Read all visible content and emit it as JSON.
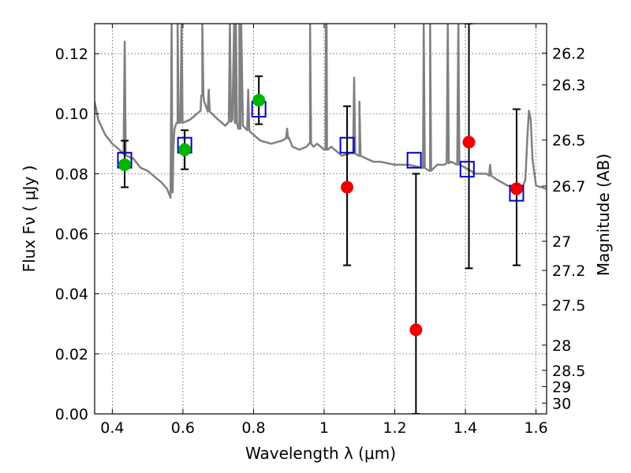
{
  "chart_data": {
    "type": "scatter",
    "title": "",
    "xlabel": "Wavelength  λ (μm)",
    "ylabel": "Flux  Fν  ( μJy )",
    "ylabel_right": "Magnitude (AB)",
    "xlim": [
      0.35,
      1.63
    ],
    "ylim": [
      0.0,
      0.13
    ],
    "grid": true,
    "x_ticks": [
      0.4,
      0.6,
      0.8,
      1.0,
      1.2,
      1.4,
      1.6
    ],
    "x_tick_labels": [
      "0.4",
      "0.6",
      "0.8",
      "1",
      "1.2",
      "1.4",
      "1.6"
    ],
    "y_ticks": [
      0.0,
      0.02,
      0.04,
      0.06,
      0.08,
      0.1,
      0.12
    ],
    "y_tick_labels": [
      "0.00",
      "0.02",
      "0.04",
      "0.06",
      "0.08",
      "0.10",
      "0.12"
    ],
    "right_ticks": [
      {
        "flux": 0.1202,
        "label": "26.2"
      },
      {
        "flux": 0.1096,
        "label": "26.3"
      },
      {
        "flux": 0.0912,
        "label": "26.5"
      },
      {
        "flux": 0.0759,
        "label": "26.7"
      },
      {
        "flux": 0.0575,
        "label": "27"
      },
      {
        "flux": 0.0478,
        "label": "27.2"
      },
      {
        "flux": 0.0363,
        "label": "27.5"
      },
      {
        "flux": 0.0229,
        "label": "28"
      },
      {
        "flux": 0.0145,
        "label": "28.5"
      },
      {
        "flux": 0.0091,
        "label": "29"
      },
      {
        "flux": 0.0036,
        "label": "30"
      }
    ],
    "sed_model": {
      "color": "#808080",
      "x": [
        0.35,
        0.36,
        0.38,
        0.4,
        0.42,
        0.44,
        0.46,
        0.48,
        0.5,
        0.52,
        0.54,
        0.555,
        0.565,
        0.57,
        0.573,
        0.576,
        0.585,
        0.6,
        0.62,
        0.65,
        0.655,
        0.66,
        0.67,
        0.7,
        0.72,
        0.74,
        0.745,
        0.75,
        0.76,
        0.765,
        0.77,
        0.79,
        0.8,
        0.82,
        0.85,
        0.88,
        0.9,
        0.91,
        0.93,
        0.95,
        0.96,
        0.97,
        0.98,
        0.99,
        1.0,
        1.01,
        1.02,
        1.03,
        1.05,
        1.08,
        1.1,
        1.12,
        1.14,
        1.16,
        1.2,
        1.24,
        1.28,
        1.3,
        1.32,
        1.34,
        1.36,
        1.4,
        1.43,
        1.46,
        1.49,
        1.52,
        1.54,
        1.56,
        1.57,
        1.575,
        1.58,
        1.585,
        1.59,
        1.6,
        1.63
      ],
      "y": [
        0.104,
        0.098,
        0.093,
        0.09,
        0.088,
        0.086,
        0.085,
        0.082,
        0.081,
        0.079,
        0.077,
        0.075,
        0.072,
        0.075,
        0.088,
        0.095,
        0.097,
        0.097,
        0.098,
        0.101,
        0.106,
        0.104,
        0.101,
        0.098,
        0.096,
        0.098,
        0.13,
        0.097,
        0.095,
        0.13,
        0.096,
        0.094,
        0.093,
        0.091,
        0.09,
        0.091,
        0.092,
        0.089,
        0.088,
        0.089,
        0.09,
        0.089,
        0.09,
        0.089,
        0.088,
        0.088,
        0.089,
        0.088,
        0.086,
        0.087,
        0.086,
        0.085,
        0.084,
        0.084,
        0.083,
        0.083,
        0.082,
        0.081,
        0.083,
        0.083,
        0.084,
        0.082,
        0.08,
        0.08,
        0.078,
        0.076,
        0.076,
        0.075,
        0.078,
        0.091,
        0.101,
        0.098,
        0.085,
        0.076,
        0.075
      ],
      "spikes": [
        {
          "x": 0.435,
          "peak": 0.124
        },
        {
          "x": 0.568,
          "peak": 0.13
        },
        {
          "x": 0.585,
          "peak": 0.13
        },
        {
          "x": 0.596,
          "peak": 0.13
        },
        {
          "x": 0.655,
          "peak": 0.13
        },
        {
          "x": 0.673,
          "peak": 0.108
        },
        {
          "x": 0.733,
          "peak": 0.13
        },
        {
          "x": 0.75,
          "peak": 0.13
        },
        {
          "x": 0.76,
          "peak": 0.13
        },
        {
          "x": 0.785,
          "peak": 0.108
        },
        {
          "x": 0.895,
          "peak": 0.095
        },
        {
          "x": 0.96,
          "peak": 0.13
        },
        {
          "x": 1.005,
          "peak": 0.13
        },
        {
          "x": 1.007,
          "peak": 0.13
        },
        {
          "x": 1.085,
          "peak": 0.112
        },
        {
          "x": 1.1,
          "peak": 0.104
        },
        {
          "x": 1.282,
          "peak": 0.13
        },
        {
          "x": 1.3,
          "peak": 0.13
        },
        {
          "x": 1.35,
          "peak": 0.13
        },
        {
          "x": 1.38,
          "peak": 0.13
        },
        {
          "x": 1.455,
          "peak": 0.08
        },
        {
          "x": 1.47,
          "peak": 0.083
        }
      ]
    },
    "series": [
      {
        "marker": "square",
        "color": "#0000cc",
        "points": [
          {
            "x": 0.435,
            "y": 0.0845
          },
          {
            "x": 0.605,
            "y": 0.0895
          },
          {
            "x": 0.815,
            "y": 0.1015
          },
          {
            "x": 1.065,
            "y": 0.0895
          },
          {
            "x": 1.255,
            "y": 0.0845
          },
          {
            "x": 1.405,
            "y": 0.0815
          },
          {
            "x": 1.545,
            "y": 0.0735
          }
        ]
      },
      {
        "marker": "circle",
        "color": "#00b400",
        "points": [
          {
            "x": 0.435,
            "y": 0.083,
            "yerr_low": 0.0755,
            "yerr_high": 0.091
          },
          {
            "x": 0.605,
            "y": 0.088,
            "yerr_low": 0.0815,
            "yerr_high": 0.0945
          },
          {
            "x": 0.815,
            "y": 0.1045,
            "yerr_low": 0.0965,
            "yerr_high": 0.1125
          }
        ]
      },
      {
        "marker": "circle",
        "color": "#ee0000",
        "points": [
          {
            "x": 1.065,
            "y": 0.0755,
            "yerr_low": 0.0495,
            "yerr_high": 0.1025
          },
          {
            "x": 1.26,
            "y": 0.028,
            "yerr_low": 0.0,
            "yerr_high": 0.08
          },
          {
            "x": 1.41,
            "y": 0.0905,
            "yerr_low": 0.0485,
            "yerr_high": 0.13
          },
          {
            "x": 1.545,
            "y": 0.075,
            "yerr_low": 0.0495,
            "yerr_high": 0.1015
          }
        ]
      }
    ]
  }
}
